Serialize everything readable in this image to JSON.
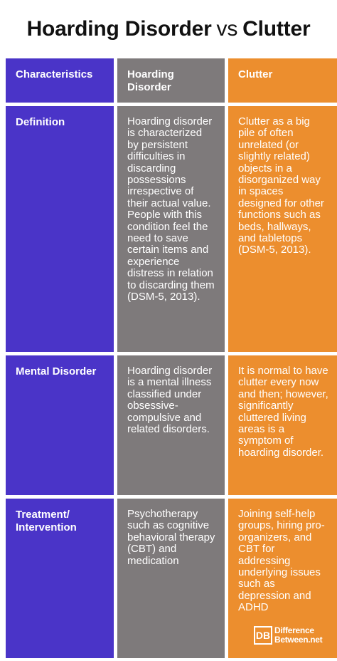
{
  "title": {
    "left": "Hoarding Disorder",
    "vs": "vs",
    "right": "Clutter"
  },
  "table": {
    "headers": [
      "Characteristics",
      "Hoarding Disorder",
      "Clutter"
    ],
    "rows": [
      {
        "label": "Definition",
        "hoarding": "Hoarding disorder is characterized by persistent difficulties in discarding possessions irrespective of their actual value. People with this condition feel the need to save certain items and experience distress in relation to discarding them (DSM-5, 2013).",
        "clutter": "Clutter as a big pile of often unrelated (or slightly related) objects in a disorganized way in spaces designed for other functions such as beds, hallways, and tabletops (DSM-5, 2013)."
      },
      {
        "label": "Mental Disorder",
        "hoarding": "Hoarding disorder is a mental illness classified under obsessive-compulsive and related disorders.",
        "clutter": "It is normal to have clutter every now and then; however, significantly cluttered living areas is a symptom of hoarding disorder."
      },
      {
        "label": "Treatment/ Intervention",
        "hoarding": "Psychotherapy such as cognitive behavioral therapy (CBT) and medication",
        "clutter": "Joining self-help groups, hiring pro-organizers, and CBT for addressing underlying issues such as depression and ADHD"
      }
    ]
  },
  "logo": {
    "mark": "DB",
    "line1": "Difference",
    "line2": "Between.net"
  }
}
